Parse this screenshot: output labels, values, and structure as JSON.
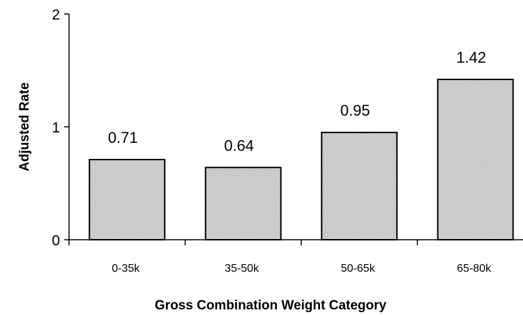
{
  "chart_data": {
    "type": "bar",
    "categories": [
      "0-35k",
      "35-50k",
      "50-65k",
      "65-80k"
    ],
    "values": [
      0.71,
      0.64,
      0.95,
      1.42
    ],
    "data_labels": [
      "0.71",
      "0.64",
      "0.95",
      "1.42"
    ],
    "title": "",
    "xlabel": "Gross Combination Weight Category",
    "ylabel": "Adjusted Rate",
    "ylim": [
      0,
      2
    ],
    "yticks": [
      0,
      1,
      2
    ],
    "ytick_labels": [
      "0",
      "1",
      "2"
    ],
    "grid": false,
    "legend": "none",
    "bar_fill": "#c8c8c8",
    "bar_pattern": "fine hatch"
  }
}
